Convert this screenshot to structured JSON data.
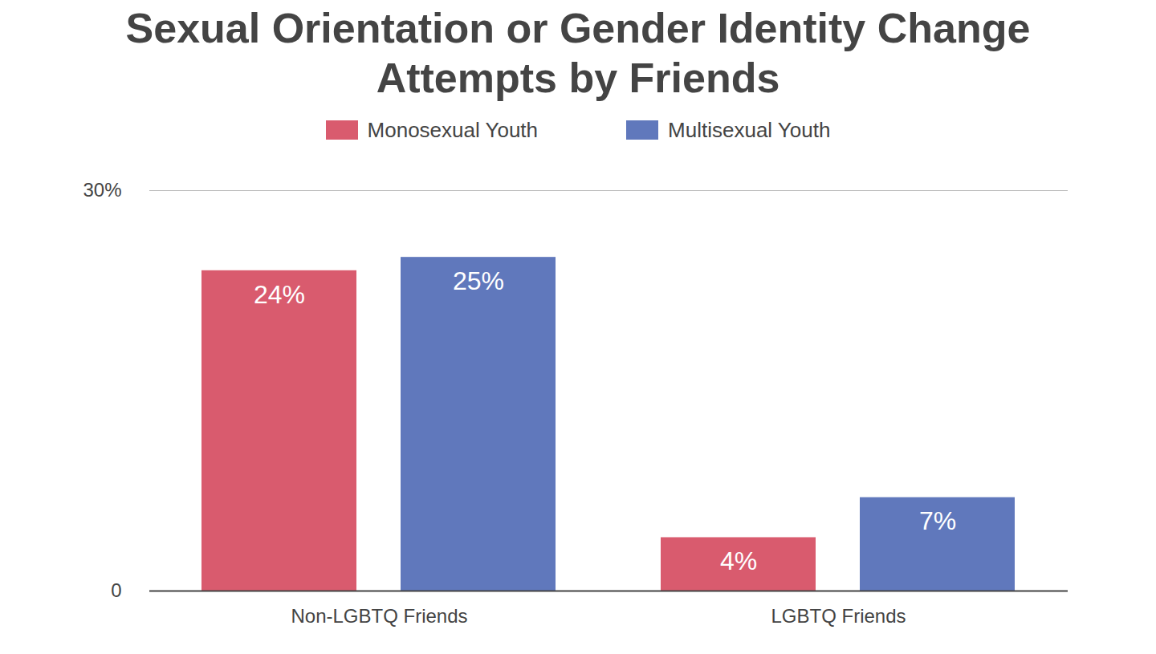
{
  "chart_data": {
    "type": "bar",
    "title": "Sexual Orientation or Gender Identity Change Attempts by Friends",
    "categories": [
      "Non-LGBTQ Friends",
      "LGBTQ Friends"
    ],
    "series": [
      {
        "name": "Monosexual Youth",
        "color": "#d95b6e",
        "values": [
          24,
          4
        ],
        "value_labels": [
          "24%",
          "4%"
        ]
      },
      {
        "name": "Multisexual Youth",
        "color": "#6078bc",
        "values": [
          25,
          7
        ],
        "value_labels": [
          "25%",
          "7%"
        ]
      }
    ],
    "ylim": [
      0,
      30
    ],
    "yticks": [
      0,
      {
        "value": 30,
        "label": "30%"
      }
    ],
    "grid": true,
    "legend": "top",
    "data_labels": true
  }
}
